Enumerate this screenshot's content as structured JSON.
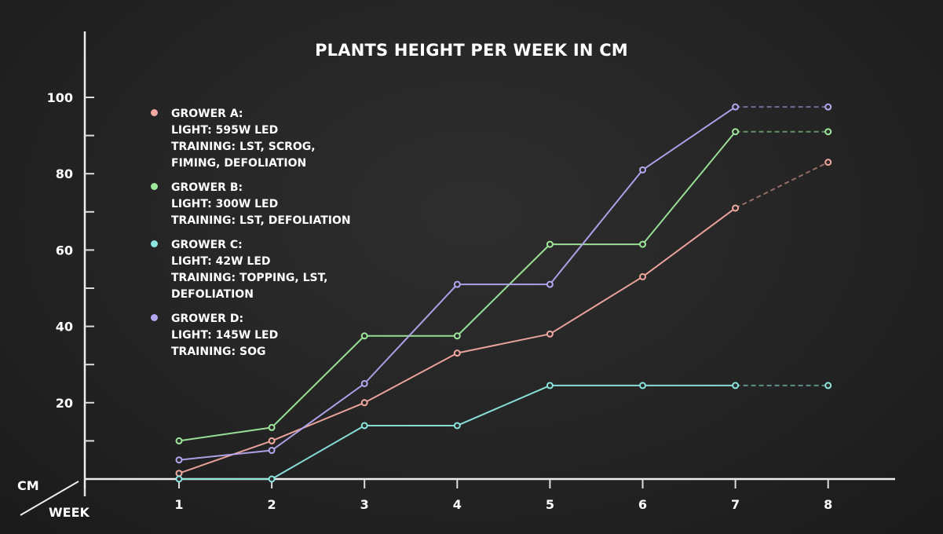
{
  "chart_data": {
    "type": "line",
    "title": "PLANTS HEIGHT PER WEEK IN CM",
    "xlabel": "WEEK",
    "ylabel": "CM",
    "x": [
      1,
      2,
      3,
      4,
      5,
      6,
      7,
      8
    ],
    "x_tick_labels": [
      "1",
      "2",
      "3",
      "4",
      "5",
      "6",
      "7",
      "8"
    ],
    "y_tick_labels": [
      "20",
      "40",
      "60",
      "80",
      "100"
    ],
    "ylim": [
      0,
      100
    ],
    "grid": false,
    "legend_placement": "top-left",
    "series": [
      {
        "name": "GROWER A",
        "color": "#f2a9a0",
        "values": [
          1.5,
          10,
          20,
          33,
          38,
          53,
          71,
          83
        ],
        "legend_lines": [
          "GROWER A:",
          "LIGHT: 595W LED",
          "TRAINING: LST, SCROG,",
          "FIMING, DEFOLIATION"
        ]
      },
      {
        "name": "GROWER B",
        "color": "#9ee89c",
        "values": [
          10,
          13.5,
          37.5,
          37.5,
          61.5,
          61.5,
          91,
          91
        ],
        "legend_lines": [
          "GROWER B:",
          "LIGHT: 300W  LED",
          "TRAINING: LST, DEFOLIATION"
        ]
      },
      {
        "name": "GROWER C",
        "color": "#8ce6df",
        "values": [
          0,
          0,
          14,
          14,
          24.5,
          24.5,
          24.5,
          24.5
        ],
        "legend_lines": [
          "GROWER C:",
          "LIGHT: 42W LED",
          "TRAINING: TOPPING, LST,",
          "DEFOLIATION"
        ]
      },
      {
        "name": "GROWER D",
        "color": "#b4a7f0",
        "values": [
          5,
          7.5,
          25,
          51,
          51,
          81,
          97.5,
          97.5
        ],
        "legend_lines": [
          "GROWER D:",
          "LIGHT: 145W LED",
          "TRAINING: SOG"
        ]
      }
    ]
  }
}
